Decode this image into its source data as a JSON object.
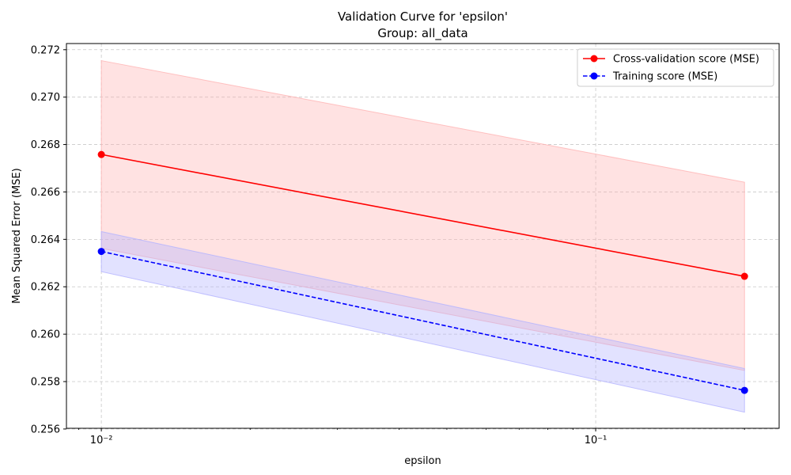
{
  "chart_data": {
    "type": "line",
    "title": "Validation Curve for 'epsilon'",
    "subtitle": "Group: all_data",
    "xlabel": "epsilon",
    "ylabel": "Mean Squared Error (MSE)",
    "xscale": "log",
    "xlim": [
      0.0085,
      0.235
    ],
    "ylim": [
      0.25603,
      0.27226
    ],
    "x": [
      0.01,
      0.2
    ],
    "xticks": [
      {
        "value": 0.01,
        "label": "10⁻²"
      },
      {
        "value": 0.1,
        "label": "10⁻¹"
      }
    ],
    "yticks": [
      0.256,
      0.258,
      0.26,
      0.262,
      0.264,
      0.266,
      0.268,
      0.27,
      0.272
    ],
    "grid": true,
    "legend_position": "top-right",
    "series": [
      {
        "name": "Cross-validation score (MSE)",
        "values": [
          0.26758,
          0.26244
        ],
        "band_upper": [
          0.27154,
          0.26641
        ],
        "band_lower": [
          0.26362,
          0.25847
        ],
        "color": "#ff0000",
        "band_color": "#ffb3b3",
        "line_style": "solid",
        "marker": "circle"
      },
      {
        "name": "Training score (MSE)",
        "values": [
          0.26349,
          0.25763
        ],
        "band_upper": [
          0.26433,
          0.25855
        ],
        "band_lower": [
          0.26264,
          0.25671
        ],
        "color": "#0000ff",
        "band_color": "#b3b3ff",
        "line_style": "dashed",
        "marker": "circle"
      }
    ]
  }
}
